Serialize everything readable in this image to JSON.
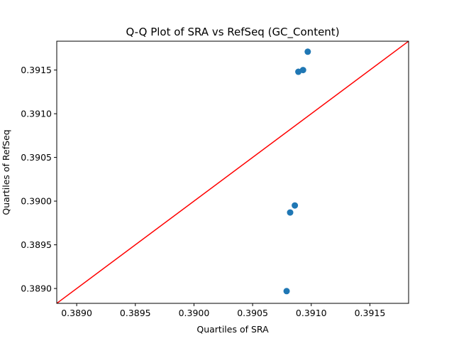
{
  "chart_data": {
    "type": "scatter",
    "title": "Q-Q Plot of SRA vs RefSeq (GC_Content)",
    "xlabel": "Quartiles of SRA",
    "ylabel": "Quartiles of RefSeq",
    "xlim": [
      0.38883,
      0.39183
    ],
    "ylim": [
      0.38883,
      0.39183
    ],
    "xticks": [
      0.389,
      0.3895,
      0.39,
      0.3905,
      0.391,
      0.3915
    ],
    "yticks": [
      0.389,
      0.3895,
      0.39,
      0.3905,
      0.391,
      0.3915
    ],
    "xtick_labels": [
      "0.3890",
      "0.3895",
      "0.3900",
      "0.3905",
      "0.3910",
      "0.3915"
    ],
    "ytick_labels": [
      "0.3890",
      "0.3895",
      "0.3900",
      "0.3905",
      "0.3910",
      "0.3915"
    ],
    "grid": false,
    "points": [
      {
        "x": 0.39079,
        "y": 0.38897
      },
      {
        "x": 0.39082,
        "y": 0.38987
      },
      {
        "x": 0.39086,
        "y": 0.38995
      },
      {
        "x": 0.39089,
        "y": 0.39148
      },
      {
        "x": 0.39093,
        "y": 0.3915
      },
      {
        "x": 0.39097,
        "y": 0.39171
      }
    ],
    "reference_line": {
      "from": [
        0.38883,
        0.38883
      ],
      "to": [
        0.39183,
        0.39183
      ]
    },
    "colors": {
      "points": "#1f77b4",
      "reference_line": "#ff0000",
      "axes": "#000000"
    }
  }
}
